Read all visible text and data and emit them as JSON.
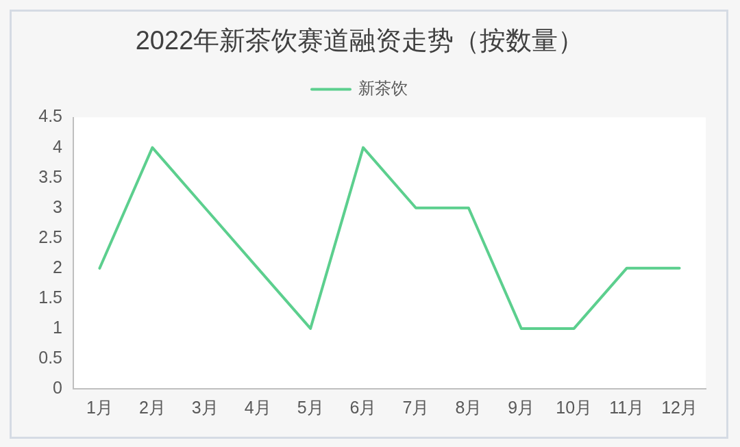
{
  "chart_data": {
    "type": "line",
    "title": "2022年新茶饮赛道融资走势（按数量）",
    "categories": [
      "1月",
      "2月",
      "3月",
      "4月",
      "5月",
      "6月",
      "7月",
      "8月",
      "9月",
      "10月",
      "11月",
      "12月"
    ],
    "series": [
      {
        "name": "新茶饮",
        "color": "#5ccf8e",
        "values": [
          2,
          4,
          3,
          2,
          1,
          4,
          3,
          3,
          1,
          1,
          2,
          2
        ]
      }
    ],
    "ylim": [
      0,
      4.5
    ],
    "yticks": [
      0,
      0.5,
      1,
      1.5,
      2,
      2.5,
      3,
      3.5,
      4,
      4.5
    ],
    "grid": false,
    "legend": "top"
  }
}
